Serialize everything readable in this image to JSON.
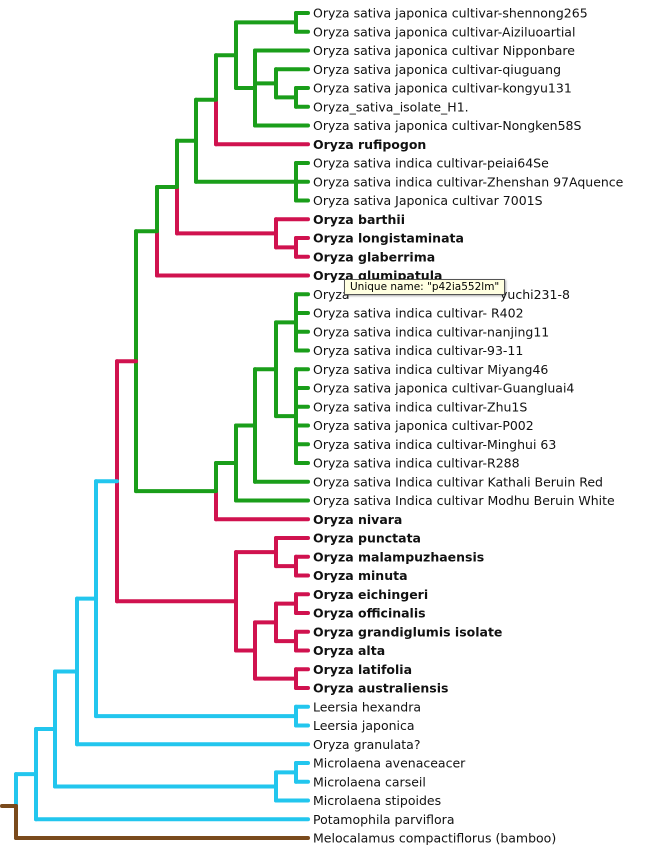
{
  "colors": {
    "green": "#1a9e1a",
    "red": "#d0124f",
    "cyan": "#22c6ee",
    "brown": "#7a4a1c"
  },
  "tree": {
    "tips": [
      {
        "label": "Oryza sativa japonica cultivar-shennong265",
        "bold": false
      },
      {
        "label": "Oryza sativa japonica cultivar-Aiziluoartial",
        "bold": false
      },
      {
        "label": "Oryza sativa japonica cultivar Nipponbare",
        "bold": false
      },
      {
        "label": "Oryza sativa japonica cultivar-qiuguang",
        "bold": false
      },
      {
        "label": "Oryza sativa japonica cultivar-kongyu131",
        "bold": false
      },
      {
        "label": "Oryza_sativa_isolate_H1.",
        "bold": false
      },
      {
        "label": "Oryza sativa japonica cultivar-Nongken58S",
        "bold": false
      },
      {
        "label": "Oryza rufipogon",
        "bold": true
      },
      {
        "label": "Oryza sativa indica cultivar-peiai64Se",
        "bold": false
      },
      {
        "label": "Oryza sativa indica cultivar-Zhenshan 97Aquence",
        "bold": false
      },
      {
        "label": "Oryza sativa Japonica cultivar 7001S",
        "bold": false
      },
      {
        "label": "Oryza barthii",
        "bold": true
      },
      {
        "label": "Oryza longistaminata",
        "bold": true
      },
      {
        "label": "Oryza glaberrima",
        "bold": true
      },
      {
        "label": "Oryza glumipatula",
        "bold": true
      },
      {
        "label": "Oryza",
        "bold": false
      },
      {
        "label": "Oryza sativa indica cultivar- R402",
        "bold": false
      },
      {
        "label": "Oryza sativa indica cultivar-nanjing11",
        "bold": false
      },
      {
        "label": "Oryza sativa indica cultivar-93-11",
        "bold": false
      },
      {
        "label": "Oryza sativa indica cultivar Miyang46",
        "bold": false
      },
      {
        "label": "Oryza sativa japonica cultivar-Guangluai4",
        "bold": false
      },
      {
        "label": "Oryza sativa indica cultivar-Zhu1S",
        "bold": false
      },
      {
        "label": "Oryza sativa japonica cultivar-P002",
        "bold": false
      },
      {
        "label": "Oryza sativa indica cultivar-Minghui 63",
        "bold": false
      },
      {
        "label": "Oryza sativa indica cultivar-R288",
        "bold": false
      },
      {
        "label": "Oryza sativa Indica cultivar Kathali Beruin Red",
        "bold": false
      },
      {
        "label": "Oryza sativa Indica cultivar Modhu Beruin White",
        "bold": false
      },
      {
        "label": "Oryza nivara",
        "bold": true
      },
      {
        "label": "Oryza punctata",
        "bold": true
      },
      {
        "label": "Oryza malampuzhaensis",
        "bold": true
      },
      {
        "label": "Oryza minuta",
        "bold": true
      },
      {
        "label": "Oryza eichingeri",
        "bold": true
      },
      {
        "label": "Oryza officinalis",
        "bold": true
      },
      {
        "label": "Oryza grandiglumis isolate",
        "bold": true
      },
      {
        "label": "Oryza alta",
        "bold": true
      },
      {
        "label": "Oryza latifolia",
        "bold": true
      },
      {
        "label": "Oryza australiensis",
        "bold": true
      },
      {
        "label": "Leersia hexandra",
        "bold": false
      },
      {
        "label": "Leersia japonica",
        "bold": false
      },
      {
        "label": "Oryza granulata?",
        "bold": false
      },
      {
        "label": "Microlaena avenaceacer",
        "bold": false
      },
      {
        "label": "Microlaena carseil",
        "bold": false
      },
      {
        "label": "Microlaena stipoides",
        "bold": false
      },
      {
        "label": "Potamophila parviflora",
        "bold": false
      },
      {
        "label": "Melocalamus compactiflorus (bamboo)",
        "bold": false
      }
    ],
    "tooltip_text": "Unique name: \"p42ia552lm\"",
    "tip_tail": "yuchi231-8"
  }
}
